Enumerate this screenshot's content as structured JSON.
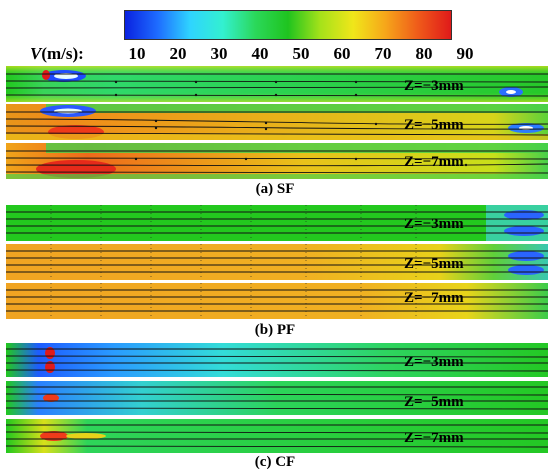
{
  "colorbar": {
    "title_var": "V",
    "title_unit": "(m/s):",
    "ticks": [
      "10",
      "20",
      "30",
      "40",
      "50",
      "60",
      "70",
      "80",
      "90"
    ],
    "colors": [
      "#0a22e0",
      "#1e6cff",
      "#2fd4ff",
      "#33f0d0",
      "#2bd85a",
      "#1fc41f",
      "#a6e21a",
      "#f0e61a",
      "#f6a51a",
      "#ef5a1a",
      "#e01a1a"
    ]
  },
  "groups": [
    {
      "caption": "(a)  SF",
      "panels": [
        {
          "label": "Z=−3mm"
        },
        {
          "label": "Z=−5mm"
        },
        {
          "label": "Z=−7mm"
        }
      ]
    },
    {
      "caption": "(b)  PF",
      "panels": [
        {
          "label": "Z=−3mm"
        },
        {
          "label": "Z=−5mm"
        },
        {
          "label": "Z=−7mm"
        }
      ]
    },
    {
      "caption": "(c) CF",
      "panels": [
        {
          "label": "Z=−3mm"
        },
        {
          "label": "Z=−5mm"
        },
        {
          "label": "Z=−7mm"
        }
      ]
    }
  ]
}
